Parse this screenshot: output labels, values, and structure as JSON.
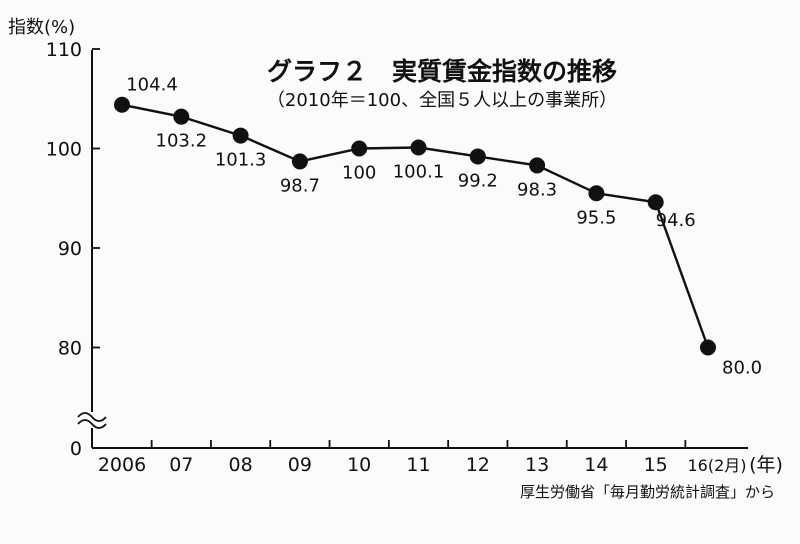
{
  "chart_data": {
    "type": "line",
    "title": "グラフ２　実質賃金指数の推移",
    "subtitle": "（2010年＝100、全国５人以上の事業所）",
    "ylabel": "指数(%)",
    "xlabel": "(年)",
    "source": "厚生労働省「毎月勤労統計調査」から",
    "y_ticks": [
      "110",
      "100",
      "90",
      "80",
      "0"
    ],
    "x_ticks": [
      "2006",
      "07",
      "08",
      "09",
      "10",
      "11",
      "12",
      "13",
      "14",
      "15",
      "16(2月)"
    ],
    "y_axis_break": true,
    "grid": false,
    "series": [
      {
        "values": [
          104.4,
          103.2,
          101.3,
          98.7,
          100,
          100.1,
          99.2,
          98.3,
          95.5,
          94.6,
          80.0
        ],
        "labels": [
          "104.4",
          "103.2",
          "101.3",
          "98.7",
          "100",
          "100.1",
          "99.2",
          "98.3",
          "95.5",
          "94.6",
          "80.0"
        ]
      }
    ]
  }
}
